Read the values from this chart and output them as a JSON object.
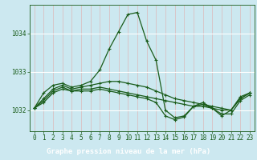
{
  "title": "Graphe pression niveau de la mer (hPa)",
  "background_color": "#cce8f0",
  "label_bg_color": "#2d6e2d",
  "label_text_color": "#ffffff",
  "line_color": "#1a5c1a",
  "grid_color_v": "#ddb8b8",
  "grid_color_h": "#ffffff",
  "xlim": [
    -0.5,
    23.5
  ],
  "ylim": [
    1031.45,
    1034.75
  ],
  "yticks": [
    1032,
    1033,
    1034
  ],
  "xticks": [
    0,
    1,
    2,
    3,
    4,
    5,
    6,
    7,
    8,
    9,
    10,
    11,
    12,
    13,
    14,
    15,
    16,
    17,
    18,
    19,
    20,
    21,
    22,
    23
  ],
  "series": [
    [
      1032.05,
      1032.45,
      1032.65,
      1032.7,
      1032.6,
      1032.65,
      1032.75,
      1033.05,
      1033.6,
      1034.05,
      1034.5,
      1034.55,
      1033.8,
      1033.3,
      1032.0,
      1031.8,
      1031.85,
      1032.1,
      1032.15,
      1032.05,
      1031.85,
      1032.0,
      1032.35,
      1032.45
    ],
    [
      1032.05,
      1032.3,
      1032.55,
      1032.65,
      1032.55,
      1032.6,
      1032.65,
      1032.7,
      1032.75,
      1032.75,
      1032.7,
      1032.65,
      1032.6,
      1032.5,
      1032.4,
      1032.3,
      1032.25,
      1032.2,
      1032.15,
      1032.1,
      1032.05,
      1032.0,
      1032.3,
      1032.45
    ],
    [
      1032.05,
      1032.25,
      1032.5,
      1032.6,
      1032.5,
      1032.55,
      1032.55,
      1032.6,
      1032.55,
      1032.5,
      1032.45,
      1032.4,
      1032.35,
      1032.3,
      1032.25,
      1032.2,
      1032.15,
      1032.1,
      1032.1,
      1032.05,
      1032.0,
      1032.0,
      1032.3,
      1032.45
    ],
    [
      1032.05,
      1032.2,
      1032.45,
      1032.55,
      1032.5,
      1032.5,
      1032.5,
      1032.55,
      1032.5,
      1032.45,
      1032.4,
      1032.35,
      1032.3,
      1032.2,
      1031.85,
      1031.75,
      1031.82,
      1032.1,
      1032.2,
      1032.05,
      1031.9,
      1031.9,
      1032.25,
      1032.4
    ]
  ],
  "marker": "+",
  "marker_size": 3.5,
  "linewidth": 0.9,
  "tick_fontsize": 5.5,
  "title_fontsize": 6.5
}
